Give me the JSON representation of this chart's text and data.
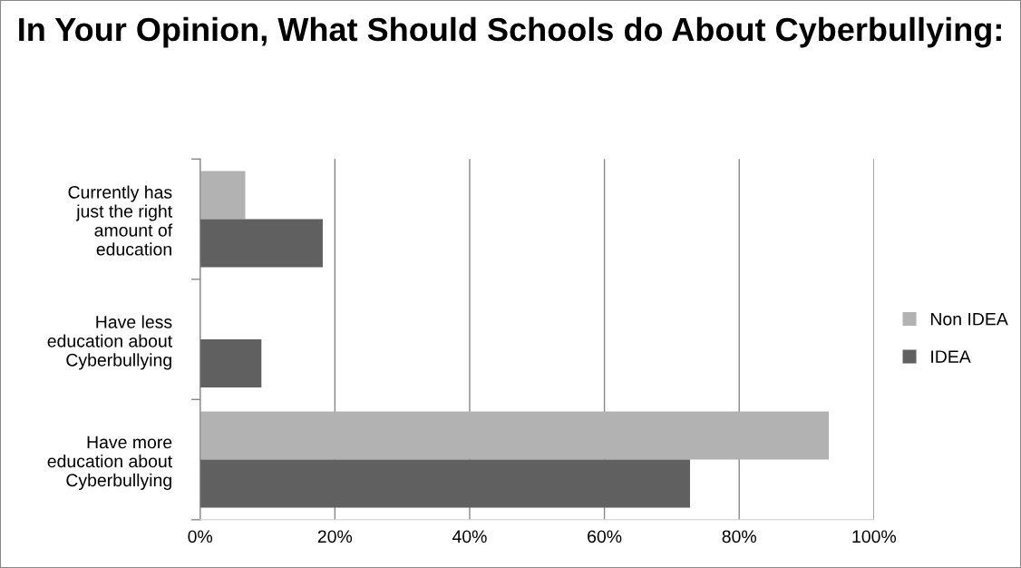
{
  "chart_data": {
    "type": "bar",
    "orientation": "horizontal",
    "title": "In Your Opinion, What Should Schools do About Cyberbullying:",
    "categories": [
      "Currently has just the right amount of education",
      "Have less education about Cyberbullying",
      "Have more education about Cyberbullying"
    ],
    "series": [
      {
        "name": "Non IDEA",
        "color": "#b2b2b2",
        "values": [
          6.7,
          0,
          93.3
        ]
      },
      {
        "name": "IDEA",
        "color": "#606060",
        "values": [
          18.2,
          9.1,
          72.7
        ]
      }
    ],
    "xlim": [
      0,
      100
    ],
    "xticks": [
      {
        "value": 0,
        "label": "0%"
      },
      {
        "value": 20,
        "label": "20%"
      },
      {
        "value": 40,
        "label": "40%"
      },
      {
        "value": 60,
        "label": "60%"
      },
      {
        "value": 80,
        "label": "80%"
      },
      {
        "value": 100,
        "label": "100%"
      }
    ],
    "grid": "x",
    "legend": "right"
  }
}
